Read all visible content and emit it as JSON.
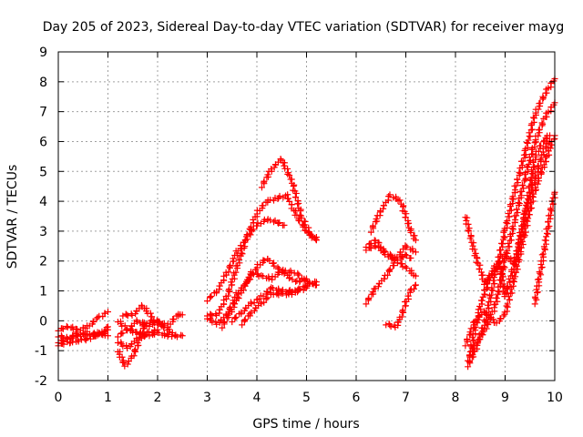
{
  "chart_data": {
    "type": "scatter",
    "title": "Day 205 of 2023, Sidereal Day-to-day VTEC variation (SDTVAR) for receiver mayg",
    "xlabel": "GPS time / hours",
    "ylabel": "SDTVAR / TECUs",
    "xlim": [
      0,
      10
    ],
    "ylim": [
      -2,
      9
    ],
    "xticks": [
      "0",
      "1",
      "2",
      "3",
      "4",
      "5",
      "6",
      "7",
      "8",
      "9",
      "10"
    ],
    "yticks": [
      "-2",
      "-1",
      "0",
      "1",
      "2",
      "3",
      "4",
      "5",
      "6",
      "7",
      "8",
      "9"
    ],
    "grid": true,
    "marker": "+",
    "color": "#ff0000",
    "segments": [
      [
        [
          0.0,
          -0.3
        ],
        [
          0.2,
          -0.2
        ],
        [
          0.4,
          -0.3
        ],
        [
          0.6,
          -0.2
        ],
        [
          0.8,
          0.1
        ],
        [
          1.0,
          0.3
        ]
      ],
      [
        [
          0.0,
          -0.5
        ],
        [
          0.2,
          -0.6
        ],
        [
          0.4,
          -0.4
        ],
        [
          0.6,
          -0.5
        ],
        [
          0.8,
          -0.4
        ],
        [
          1.0,
          -0.5
        ]
      ],
      [
        [
          0.0,
          -0.7
        ],
        [
          0.2,
          -0.6
        ],
        [
          0.4,
          -0.5
        ],
        [
          0.6,
          -0.4
        ],
        [
          0.8,
          -0.5
        ],
        [
          1.0,
          -0.3
        ]
      ],
      [
        [
          0.0,
          -0.8
        ],
        [
          0.3,
          -0.7
        ],
        [
          0.6,
          -0.6
        ],
        [
          0.9,
          -0.4
        ],
        [
          1.0,
          -0.2
        ]
      ],
      [
        [
          1.2,
          0.0
        ],
        [
          1.4,
          -0.3
        ],
        [
          1.6,
          0.0
        ],
        [
          1.8,
          -0.2
        ],
        [
          2.0,
          0.0
        ],
        [
          2.2,
          -0.2
        ],
        [
          2.4,
          0.2
        ],
        [
          2.5,
          0.2
        ]
      ],
      [
        [
          1.2,
          -0.5
        ],
        [
          1.4,
          -0.3
        ],
        [
          1.6,
          -0.4
        ],
        [
          1.8,
          -0.5
        ],
        [
          2.0,
          -0.4
        ],
        [
          2.2,
          -0.5
        ],
        [
          2.5,
          -0.5
        ]
      ],
      [
        [
          1.2,
          -1.0
        ],
        [
          1.35,
          -1.5
        ],
        [
          1.5,
          -1.2
        ],
        [
          1.65,
          -0.6
        ],
        [
          1.8,
          -0.4
        ],
        [
          2.0,
          -0.3
        ]
      ],
      [
        [
          1.2,
          -0.7
        ],
        [
          1.4,
          -0.9
        ],
        [
          1.6,
          -0.6
        ],
        [
          1.75,
          -0.1
        ],
        [
          1.9,
          0.0
        ],
        [
          2.1,
          -0.1
        ]
      ],
      [
        [
          1.3,
          0.2
        ],
        [
          1.5,
          0.2
        ],
        [
          1.7,
          0.5
        ],
        [
          1.9,
          0.1
        ],
        [
          2.1,
          -0.2
        ],
        [
          2.3,
          -0.4
        ]
      ],
      [
        [
          3.0,
          0.7
        ],
        [
          3.2,
          1.0
        ],
        [
          3.4,
          1.6
        ],
        [
          3.6,
          2.3
        ],
        [
          3.8,
          2.8
        ],
        [
          4.0,
          3.2
        ],
        [
          4.2,
          3.4
        ],
        [
          4.4,
          3.3
        ],
        [
          4.55,
          3.2
        ]
      ],
      [
        [
          3.0,
          0.2
        ],
        [
          3.2,
          0.2
        ],
        [
          3.4,
          0.8
        ],
        [
          3.6,
          1.8
        ],
        [
          3.8,
          2.8
        ],
        [
          4.0,
          3.6
        ],
        [
          4.2,
          4.0
        ],
        [
          4.4,
          4.1
        ],
        [
          4.6,
          4.2
        ],
        [
          4.8,
          3.5
        ],
        [
          5.0,
          3.0
        ],
        [
          5.2,
          2.7
        ]
      ],
      [
        [
          4.1,
          4.5
        ],
        [
          4.3,
          5.1
        ],
        [
          4.5,
          5.4
        ],
        [
          4.7,
          4.7
        ],
        [
          4.9,
          3.5
        ],
        [
          5.1,
          2.8
        ],
        [
          5.2,
          2.8
        ]
      ],
      [
        [
          3.0,
          0.1
        ],
        [
          3.2,
          -0.1
        ],
        [
          3.4,
          0.2
        ],
        [
          3.6,
          0.9
        ],
        [
          3.8,
          1.3
        ],
        [
          4.0,
          1.8
        ],
        [
          4.2,
          2.1
        ],
        [
          4.4,
          1.8
        ],
        [
          4.6,
          1.5
        ],
        [
          4.8,
          1.3
        ],
        [
          5.0,
          1.4
        ]
      ],
      [
        [
          3.3,
          -0.2
        ],
        [
          3.5,
          0.4
        ],
        [
          3.7,
          1.0
        ],
        [
          3.9,
          1.6
        ],
        [
          4.1,
          1.5
        ],
        [
          4.3,
          1.4
        ],
        [
          4.5,
          1.7
        ],
        [
          4.8,
          1.6
        ],
        [
          5.0,
          1.3
        ],
        [
          5.2,
          1.2
        ]
      ],
      [
        [
          3.5,
          0.0
        ],
        [
          3.7,
          0.3
        ],
        [
          3.9,
          0.6
        ],
        [
          4.1,
          0.8
        ],
        [
          4.3,
          1.1
        ],
        [
          4.5,
          1.0
        ],
        [
          4.8,
          1.0
        ],
        [
          5.0,
          1.1
        ]
      ],
      [
        [
          3.7,
          -0.1
        ],
        [
          3.9,
          0.3
        ],
        [
          4.1,
          0.6
        ],
        [
          4.3,
          0.9
        ],
        [
          4.5,
          0.9
        ],
        [
          4.7,
          0.9
        ],
        [
          5.0,
          1.2
        ],
        [
          5.2,
          1.3
        ]
      ],
      [
        [
          6.3,
          3.0
        ],
        [
          6.5,
          3.7
        ],
        [
          6.7,
          4.2
        ],
        [
          6.9,
          4.0
        ],
        [
          7.1,
          3.0
        ],
        [
          7.2,
          2.7
        ]
      ],
      [
        [
          6.2,
          2.5
        ],
        [
          6.4,
          2.7
        ],
        [
          6.6,
          2.2
        ],
        [
          6.8,
          2.1
        ],
        [
          7.0,
          2.5
        ],
        [
          7.2,
          2.3
        ]
      ],
      [
        [
          6.2,
          2.4
        ],
        [
          6.4,
          2.5
        ],
        [
          6.6,
          2.3
        ],
        [
          6.8,
          2.0
        ],
        [
          7.0,
          1.8
        ],
        [
          7.2,
          1.5
        ]
      ],
      [
        [
          6.2,
          0.6
        ],
        [
          6.4,
          1.1
        ],
        [
          6.6,
          1.5
        ],
        [
          6.8,
          2.0
        ],
        [
          7.0,
          2.2
        ],
        [
          7.1,
          2.1
        ]
      ],
      [
        [
          6.6,
          -0.1
        ],
        [
          6.8,
          -0.2
        ],
        [
          6.9,
          0.1
        ],
        [
          7.0,
          0.6
        ],
        [
          7.1,
          1.0
        ],
        [
          7.2,
          1.2
        ]
      ],
      [
        [
          8.2,
          3.5
        ],
        [
          8.4,
          2.2
        ],
        [
          8.6,
          1.2
        ],
        [
          8.8,
          1.8
        ],
        [
          9.0,
          2.2
        ],
        [
          9.2,
          1.9
        ],
        [
          9.4,
          3.5
        ],
        [
          9.6,
          5.5
        ],
        [
          9.8,
          6.1
        ],
        [
          9.9,
          6.2
        ]
      ],
      [
        [
          8.25,
          -1.5
        ],
        [
          8.4,
          -1.0
        ],
        [
          8.6,
          0.0
        ],
        [
          8.8,
          1.5
        ],
        [
          9.0,
          3.0
        ],
        [
          9.2,
          4.4
        ],
        [
          9.4,
          5.6
        ],
        [
          9.6,
          6.9
        ],
        [
          9.8,
          7.6
        ],
        [
          10.0,
          8.1
        ]
      ],
      [
        [
          8.25,
          -1.3
        ],
        [
          8.4,
          -0.8
        ],
        [
          8.6,
          -0.3
        ],
        [
          8.8,
          0.5
        ],
        [
          9.0,
          2.0
        ],
        [
          9.2,
          3.4
        ],
        [
          9.4,
          4.8
        ],
        [
          9.6,
          6.0
        ],
        [
          9.8,
          6.8
        ],
        [
          10.0,
          7.3
        ]
      ],
      [
        [
          8.2,
          -0.8
        ],
        [
          8.4,
          0.0
        ],
        [
          8.6,
          0.3
        ],
        [
          8.8,
          -0.1
        ],
        [
          9.0,
          0.2
        ],
        [
          9.2,
          1.5
        ],
        [
          9.4,
          3.0
        ],
        [
          9.6,
          4.4
        ],
        [
          9.8,
          5.3
        ],
        [
          10.0,
          6.2
        ]
      ],
      [
        [
          8.3,
          -1.0
        ],
        [
          8.5,
          0.5
        ],
        [
          8.7,
          1.5
        ],
        [
          8.9,
          1.9
        ],
        [
          9.0,
          0.8
        ],
        [
          9.2,
          2.0
        ],
        [
          9.4,
          3.6
        ],
        [
          9.6,
          4.8
        ],
        [
          9.8,
          5.8
        ],
        [
          9.9,
          6.0
        ]
      ],
      [
        [
          9.6,
          0.6
        ],
        [
          9.8,
          2.5
        ],
        [
          9.9,
          3.5
        ],
        [
          10.0,
          4.3
        ]
      ]
    ]
  }
}
